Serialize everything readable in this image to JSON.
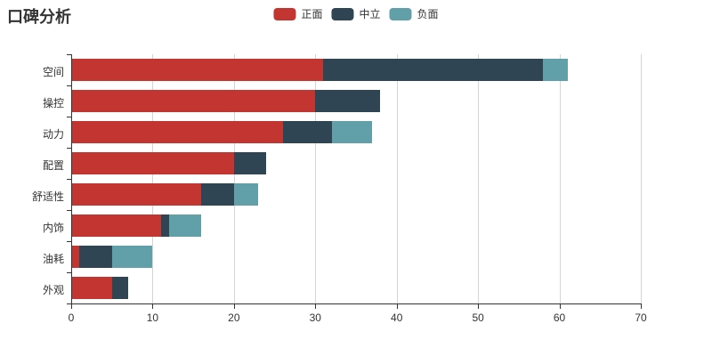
{
  "chart_data": {
    "type": "bar",
    "orientation": "horizontal",
    "stacked": true,
    "title": "口碑分析",
    "categories": [
      "空间",
      "操控",
      "动力",
      "配置",
      "舒适性",
      "内饰",
      "油耗",
      "外观"
    ],
    "series": [
      {
        "name": "正面",
        "color": "#c23531",
        "values": [
          31,
          30,
          26,
          20,
          16,
          11,
          1,
          5
        ]
      },
      {
        "name": "中立",
        "color": "#2f4554",
        "values": [
          27,
          8,
          6,
          4,
          4,
          1,
          4,
          2
        ]
      },
      {
        "name": "负面",
        "color": "#61a0a8",
        "values": [
          3,
          0,
          5,
          0,
          3,
          4,
          5,
          0
        ]
      }
    ],
    "totals": [
      61,
      38,
      37,
      24,
      23,
      16,
      10,
      7
    ],
    "xlabel": "",
    "ylabel": "",
    "xlim": [
      0,
      70
    ],
    "xticks": [
      0,
      10,
      20,
      30,
      40,
      50,
      60,
      70
    ],
    "grid": true,
    "legend_position": "top-center",
    "colors": {
      "axis": "#333333",
      "gridline": "#d4d4d4",
      "text": "#333333",
      "background": "#ffffff"
    }
  }
}
